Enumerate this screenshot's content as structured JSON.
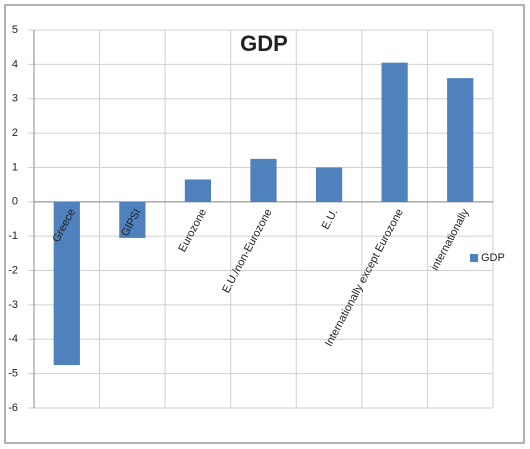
{
  "chart_data": {
    "type": "bar",
    "title": "GDP",
    "categories": [
      "Greece",
      "GIPSI",
      "Eurozone",
      "E.U./non-Eurozone",
      "E.U.",
      "Internationally except Eurozone",
      "internationally"
    ],
    "series": [
      {
        "name": "GDP",
        "color": "#4f81bd",
        "values": [
          -4.75,
          -1.05,
          0.65,
          1.25,
          1.0,
          4.05,
          3.6
        ]
      }
    ],
    "ylim": [
      -6,
      5
    ],
    "yticks": [
      -6,
      -5,
      -4,
      -3,
      -2,
      -1,
      0,
      1,
      2,
      3,
      4,
      5
    ],
    "grid": true,
    "legend": "right"
  }
}
